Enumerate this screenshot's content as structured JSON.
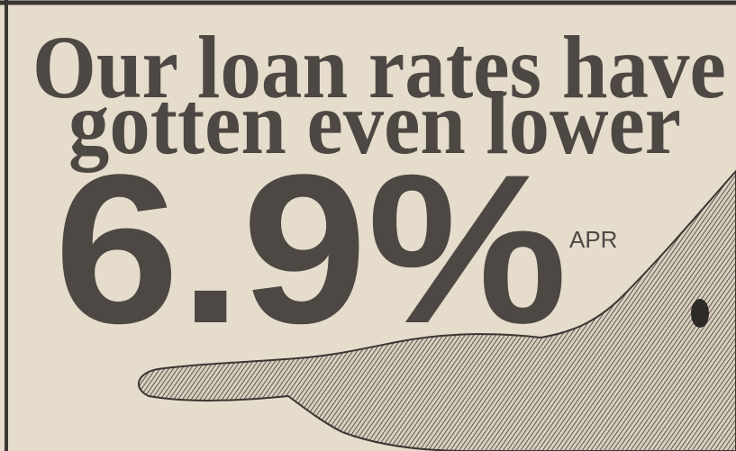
{
  "headline": {
    "line1": "Our loan rates have",
    "line2": "gotten even lower"
  },
  "rate": {
    "value": "6.9%",
    "unit": "APR"
  }
}
